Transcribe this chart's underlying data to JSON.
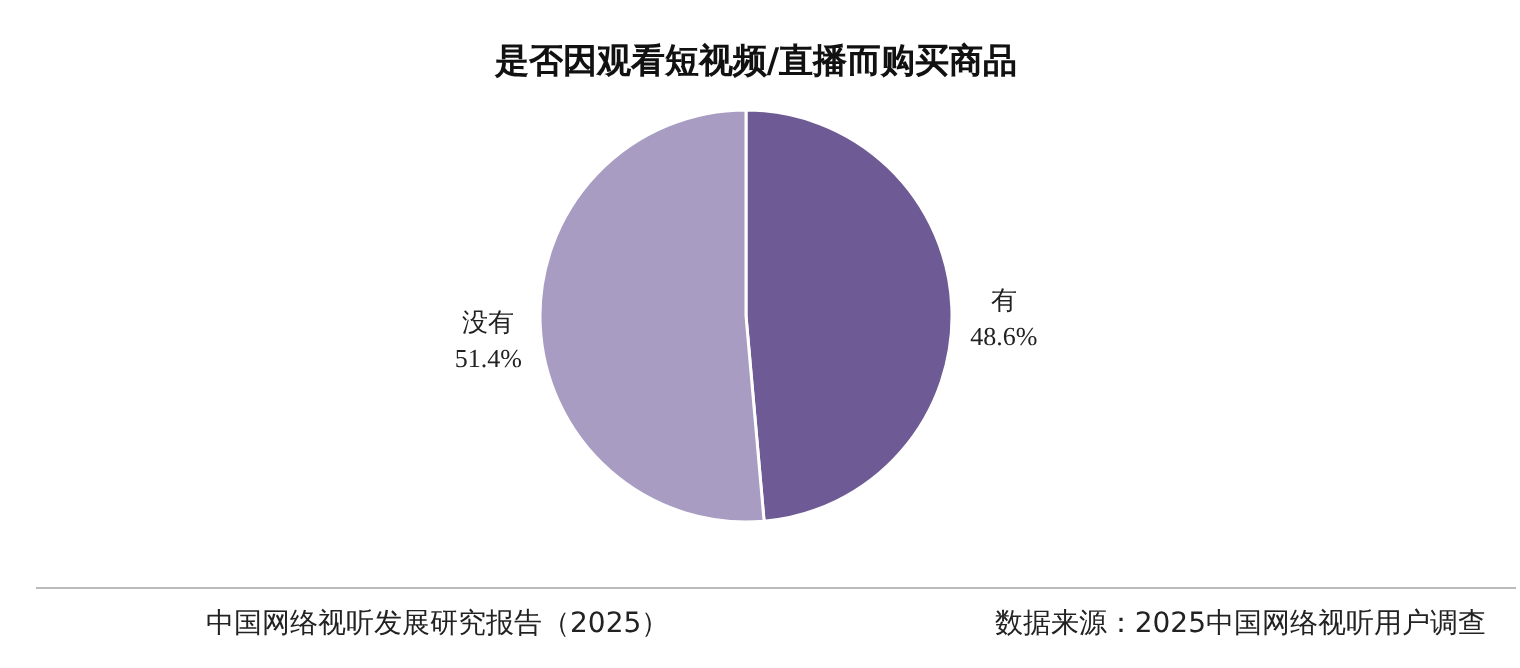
{
  "chart_data": {
    "type": "pie",
    "title": "是否因观看短视频/直播而购买商品",
    "categories": [
      "有",
      "没有"
    ],
    "values": [
      48.6,
      51.4
    ],
    "colors": [
      "#6e5a94",
      "#a99cc2"
    ],
    "value_labels": [
      "48.6%",
      "51.4%"
    ],
    "annotations": [
      "中国网络视听发展研究报告（2025）",
      "数据来源：2025中国网络视听用户调查"
    ]
  }
}
